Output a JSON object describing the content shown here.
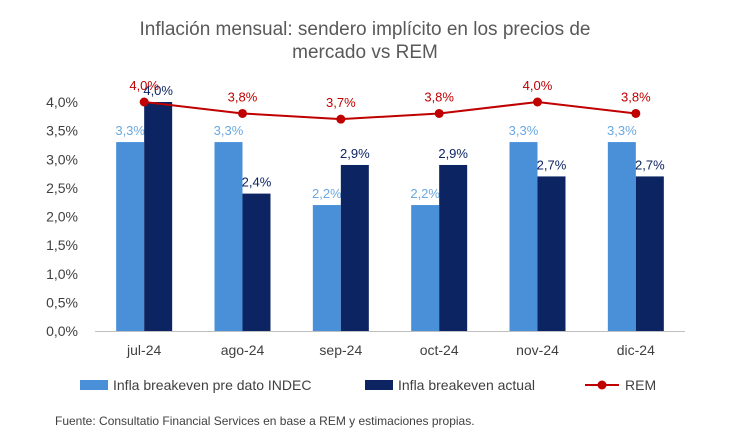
{
  "chart_data": {
    "type": "bar",
    "title_line1": "Inflación mensual: sendero implícito en los precios de",
    "title_line2": "mercado vs REM",
    "categories": [
      "jul-24",
      "ago-24",
      "sep-24",
      "oct-24",
      "nov-24",
      "dic-24"
    ],
    "series": [
      {
        "name": "Infla breakeven pre dato INDEC",
        "type": "bar",
        "color": "#4A90D9",
        "label_color": "#6AA8E0",
        "values": [
          3.3,
          3.3,
          2.2,
          2.2,
          3.3,
          3.3
        ],
        "labels": [
          "3,3%",
          "3,3%",
          "2,2%",
          "2,2%",
          "3,3%",
          "3,3%"
        ]
      },
      {
        "name": "Infla breakeven actual",
        "type": "bar",
        "color": "#0C2461",
        "label_color": "#0C2461",
        "values": [
          4.0,
          2.4,
          2.9,
          2.9,
          2.7,
          2.7
        ],
        "labels": [
          "4,0%",
          "2,4%",
          "2,9%",
          "2,9%",
          "2,7%",
          "2,7%"
        ]
      },
      {
        "name": "REM",
        "type": "line",
        "color": "#C00000",
        "label_color": "#C00000",
        "values": [
          4.0,
          3.8,
          3.7,
          3.8,
          4.0,
          3.8
        ],
        "labels": [
          "4,0%",
          "3,8%",
          "3,7%",
          "3,8%",
          "4,0%",
          "3,8%"
        ]
      }
    ],
    "yticks": [
      "0,0%",
      "0,5%",
      "1,0%",
      "1,5%",
      "2,0%",
      "2,5%",
      "3,0%",
      "3,5%",
      "4,0%"
    ],
    "ylim": [
      0,
      4.0
    ],
    "grid": false,
    "legend_position": "bottom"
  },
  "source": "Fuente: Consultatio Financial Services en base a REM y estimaciones propias."
}
